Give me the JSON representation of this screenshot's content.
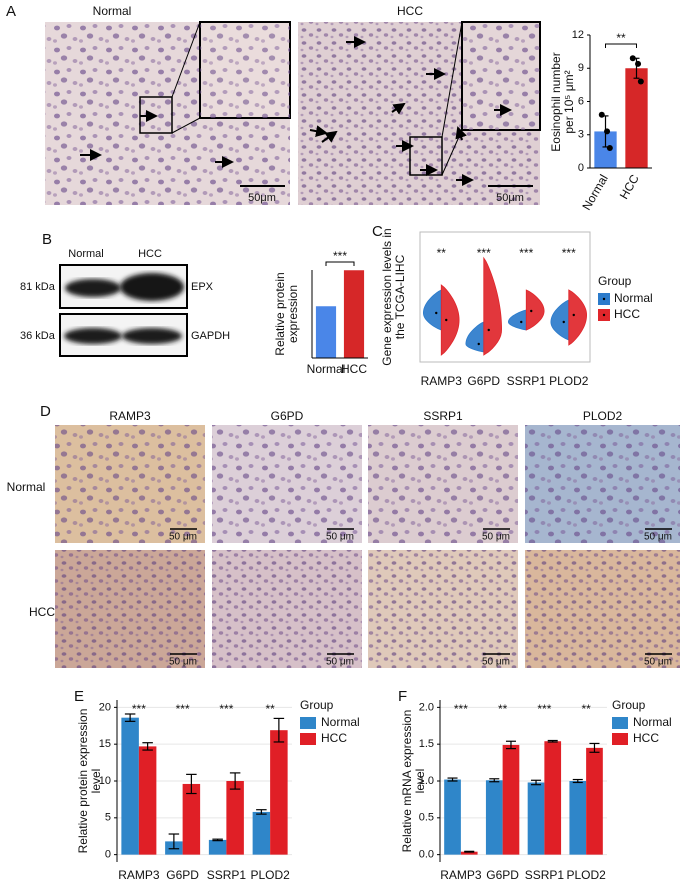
{
  "panel_labels": [
    "A",
    "B",
    "C",
    "D",
    "E",
    "F"
  ],
  "eosinophil_images": {
    "labels": [
      "Normal",
      "HCC"
    ],
    "scale_bar": "50μm"
  },
  "western_blot": {
    "lanes": [
      "Normal",
      "HCC"
    ],
    "markers": [
      "81 kDa",
      "36 kDa"
    ],
    "proteins": [
      "EPX",
      "GAPDH"
    ]
  },
  "ihc_images": {
    "genes": [
      "RAMP3",
      "G6PD",
      "SSRP1",
      "PLOD2"
    ],
    "groups": [
      "Normal",
      "HCC"
    ],
    "scale_bar": "50 μm"
  },
  "chart_data": [
    {
      "type": "bar",
      "categories": [
        "Normal",
        "HCC"
      ],
      "values": [
        3.3,
        9.0
      ],
      "errors": [
        1.4,
        0.9
      ],
      "points": [
        [
          4.8,
          3.3,
          1.8
        ],
        [
          9.9,
          9.4,
          7.8
        ]
      ],
      "colors": [
        "#4a86e8",
        "#d62728"
      ],
      "ylabel": "Eosinophil number per 10⁵ μm²",
      "ylim": [
        0,
        12
      ],
      "yticks": [
        0,
        3,
        6,
        9,
        12
      ],
      "significance": "**"
    },
    {
      "type": "bar",
      "categories": [
        "Normal",
        "HCC"
      ],
      "values": [
        1.15,
        1.95
      ],
      "colors": [
        "#4a86e8",
        "#d62728"
      ],
      "ylabel": "Relative protein expression",
      "significance": "***"
    },
    {
      "type": "violin",
      "categories": [
        "RAMP3",
        "G6PD",
        "SSRP1",
        "PLOD2"
      ],
      "ylabel": "Gene expression levels in the TCGA-LIHC",
      "legend_title": "Group",
      "series": [
        {
          "name": "Normal",
          "color": "#2b7bcb",
          "values": [
            2.45,
            0.9,
            2.0,
            2.0
          ],
          "ranges": [
            [
              1.6,
              3.6
            ],
            [
              0.5,
              2.0
            ],
            [
              1.6,
              2.6
            ],
            [
              1.1,
              3.1
            ]
          ]
        },
        {
          "name": "HCC",
          "color": "#e0262b",
          "values": [
            2.1,
            1.6,
            2.55,
            2.35
          ],
          "ranges": [
            [
              0.35,
              3.85
            ],
            [
              0.35,
              5.2
            ],
            [
              1.6,
              3.6
            ],
            [
              0.85,
              3.6
            ]
          ]
        }
      ],
      "significance": [
        "**",
        "***",
        "***",
        "***"
      ]
    },
    {
      "type": "grouped_bar",
      "categories": [
        "RAMP3",
        "G6PD",
        "SSRP1",
        "PLOD2"
      ],
      "ylabel": "Relative protein expression level",
      "legend_title": "Group",
      "series": [
        {
          "name": "Normal",
          "color": "#2f86c9",
          "values": [
            18.6,
            1.8,
            2.0,
            5.8
          ],
          "errors": [
            0.5,
            1.0,
            0.1,
            0.3
          ]
        },
        {
          "name": "HCC",
          "color": "#e01f26",
          "values": [
            14.7,
            9.6,
            10.0,
            16.9
          ],
          "errors": [
            0.5,
            1.3,
            1.1,
            1.6
          ]
        }
      ],
      "ylim": [
        -1,
        21
      ],
      "yticks": [
        0,
        5,
        10,
        15,
        20
      ],
      "grid": true,
      "significance": [
        "***",
        "***",
        "***",
        "**"
      ]
    },
    {
      "type": "grouped_bar",
      "categories": [
        "RAMP3",
        "G6PD",
        "SSRP1",
        "PLOD2"
      ],
      "ylabel": "Relative mRNA expression level",
      "legend_title": "Group",
      "series": [
        {
          "name": "Normal",
          "color": "#2f86c9",
          "values": [
            1.02,
            1.01,
            0.98,
            1.0
          ],
          "errors": [
            0.02,
            0.02,
            0.03,
            0.02
          ]
        },
        {
          "name": "HCC",
          "color": "#e01f26",
          "values": [
            0.04,
            1.49,
            1.54,
            1.45
          ],
          "errors": [
            0.005,
            0.05,
            0.01,
            0.06
          ]
        }
      ],
      "ylim": [
        -0.1,
        2.1
      ],
      "yticks": [
        {
          "value": 0,
          "label": "0.0"
        },
        {
          "value": 0.5,
          "label": "0.5"
        },
        {
          "value": 1,
          "label": "1.0"
        },
        {
          "value": 1.5,
          "label": "1.5"
        },
        {
          "value": 2,
          "label": "2.0"
        }
      ],
      "grid": true,
      "significance": [
        "***",
        "**",
        "***",
        "**"
      ]
    }
  ]
}
